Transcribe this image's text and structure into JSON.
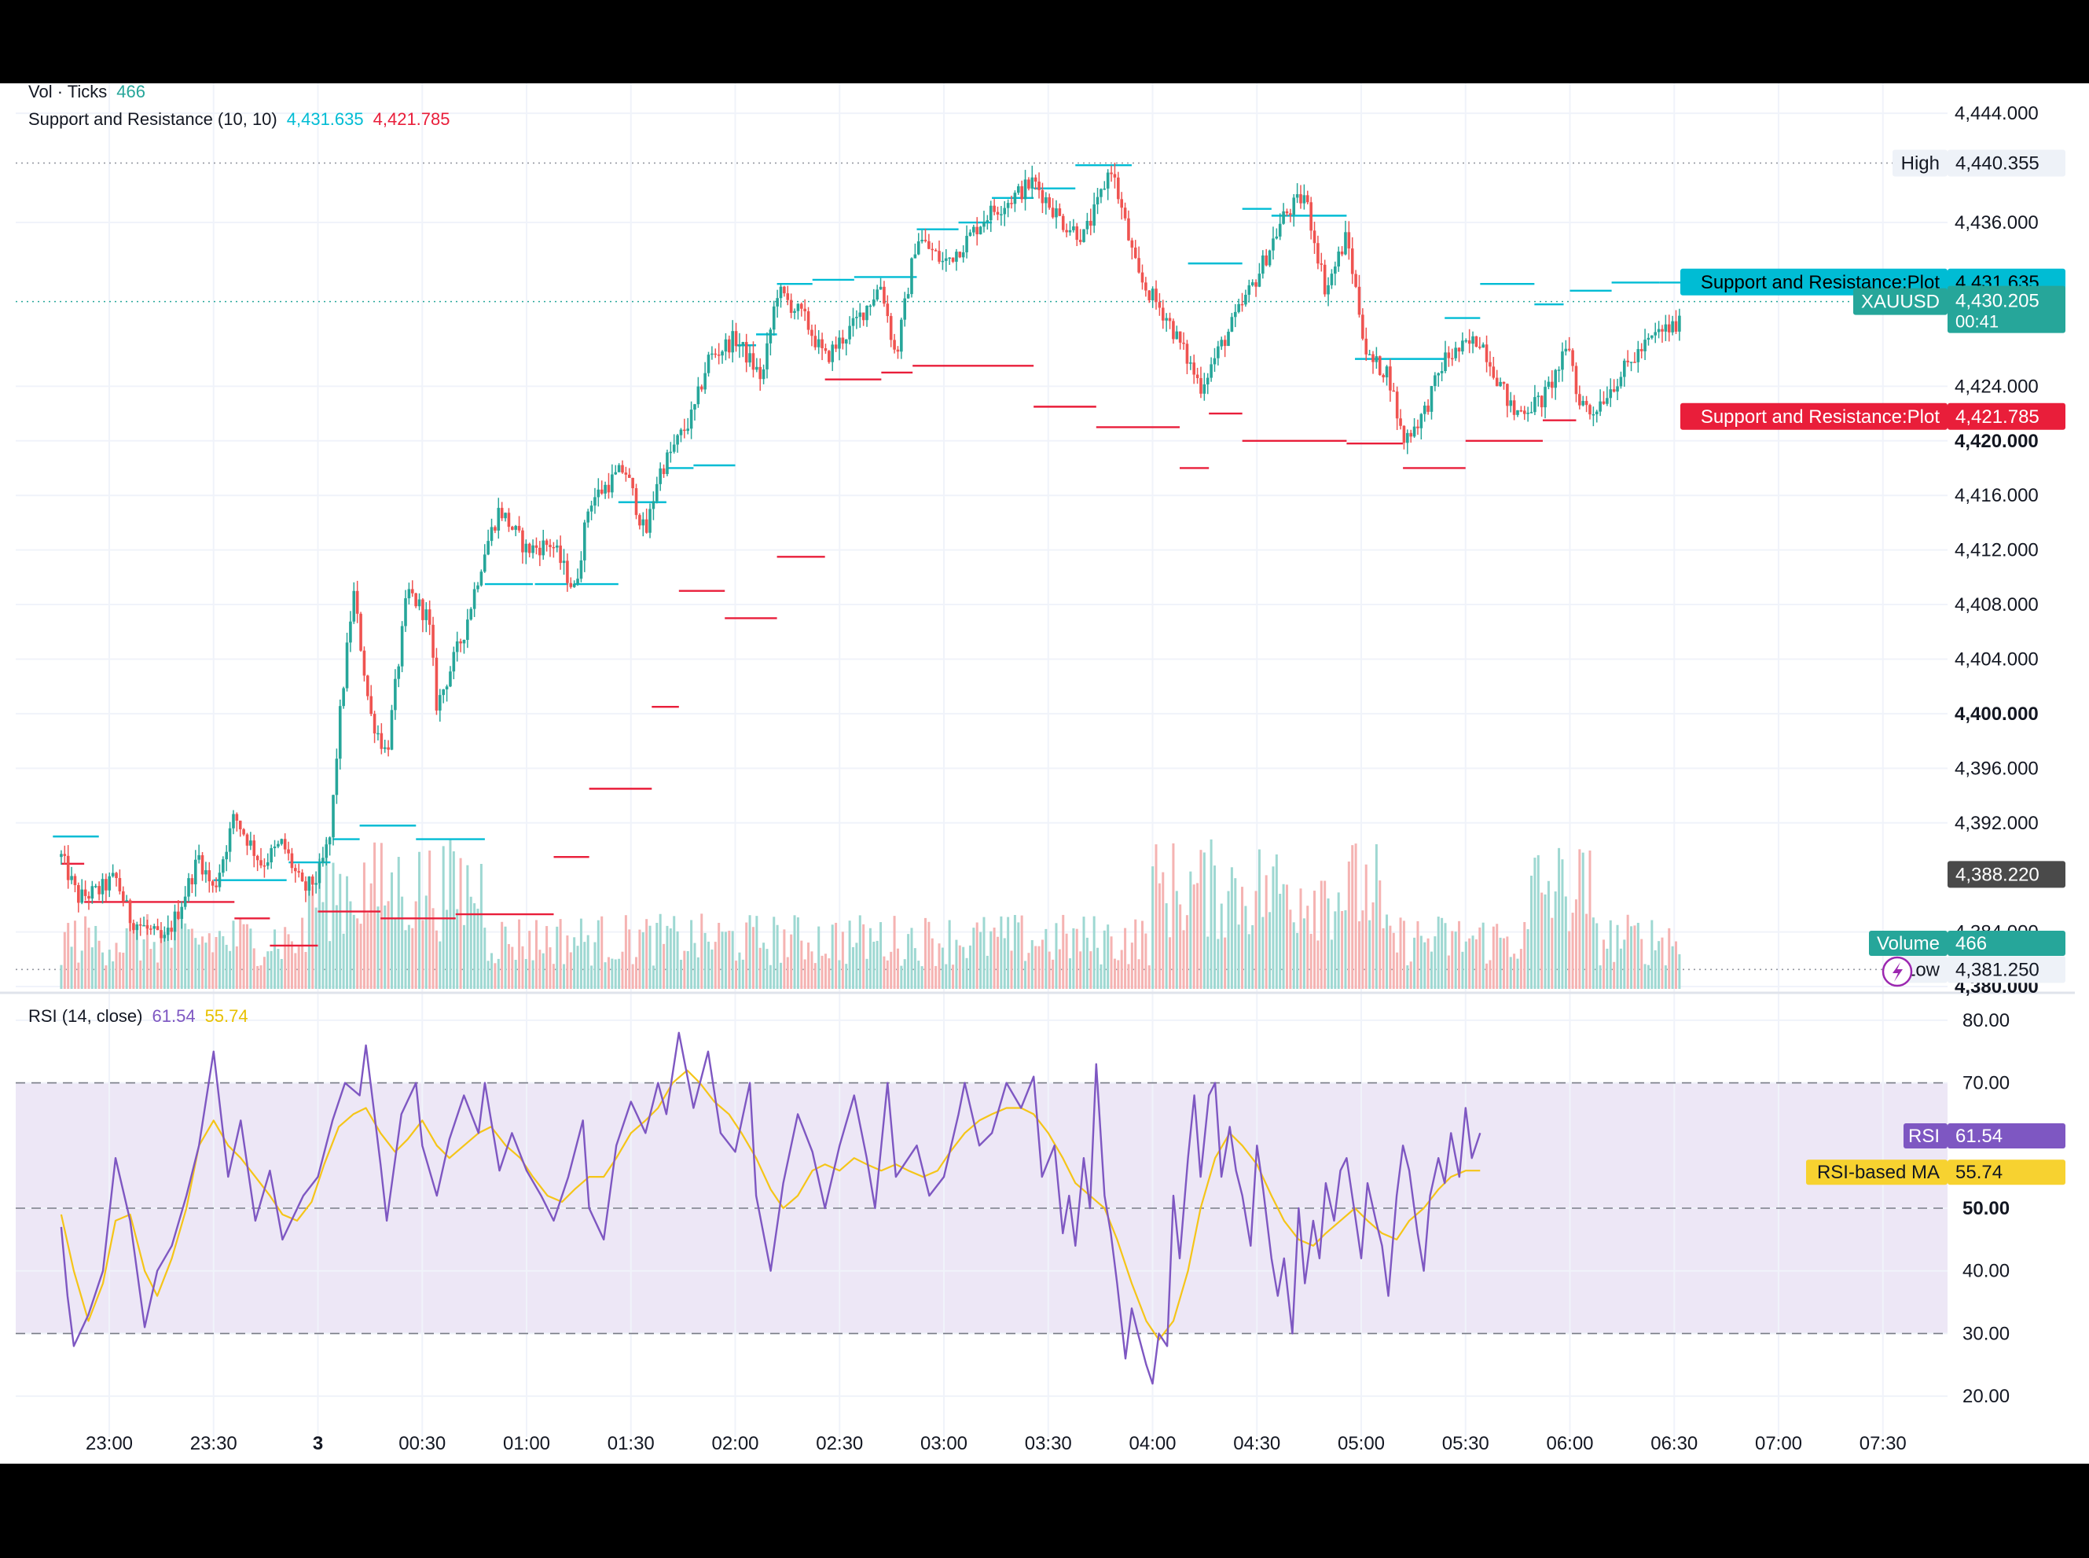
{
  "colors": {
    "up": "#26a69a",
    "down": "#ef5350",
    "resistance": "#00bcd4",
    "support": "#e91e3a",
    "rsi": "#7e57c2",
    "rsi_ma": "#f5c518",
    "rsi_band": "#ede7f6",
    "grid": "#f0f3fa",
    "axis_text": "#131722"
  },
  "legend": {
    "volume": {
      "label": "Vol · Ticks",
      "value": "466"
    },
    "sr": {
      "label": "Support and Resistance (10, 10)",
      "resistance": "4,431.635",
      "support": "4,421.785"
    },
    "rsi": {
      "label": "RSI (14, close)",
      "rsi": "61.54",
      "ma": "55.74"
    }
  },
  "price_labels": {
    "high_label": "High",
    "high_value": "4,440.355",
    "resistance_label": "Support and Resistance:Plot",
    "resistance_value": "4,431.635",
    "symbol": "XAUUSD",
    "last_price": "4,430.205",
    "countdown": "00:41",
    "support_label": "Support and Resistance:Plot",
    "support_value": "4,421.785",
    "crosshair_value": "4,388.220",
    "low_label": "Low",
    "low_value": "4,381.250",
    "volume_label": "Volume",
    "volume_value": "466"
  },
  "rsi_labels": {
    "rsi_label": "RSI",
    "rsi_value": "61.54",
    "ma_label": "RSI-based MA",
    "ma_value": "55.74"
  },
  "chart_data": {
    "type": "candlestick",
    "symbol": "XAUUSD",
    "price_axis": {
      "ticks": [
        "4,444.000",
        "4,436.000",
        "4,424.000",
        "4,420.000",
        "4,416.000",
        "4,412.000",
        "4,408.000",
        "4,404.000",
        "4,400.000",
        "4,396.000",
        "4,392.000",
        "4,384.000",
        "4,380.000"
      ],
      "bold_ticks": [
        "4,420.000",
        "4,400.000",
        "4,380.000"
      ],
      "range": [
        4379.6,
        4446.2
      ]
    },
    "rsi_axis": {
      "ticks": [
        "80.00",
        "70.00",
        "50.00",
        "40.00",
        "30.00",
        "20.00"
      ],
      "bold_ticks": [
        "50.00"
      ],
      "range": [
        16,
        84
      ],
      "band": [
        30,
        70
      ],
      "dashed_levels": [
        70,
        50,
        30
      ]
    },
    "time_axis": {
      "labels": [
        "23:00",
        "23:30",
        "3",
        "00:30",
        "01:00",
        "01:30",
        "02:00",
        "02:30",
        "03:00",
        "03:30",
        "04:00",
        "04:30",
        "05:00",
        "05:30",
        "06:00",
        "06:30",
        "07:00",
        "07:30"
      ],
      "bold_labels": [
        "3"
      ]
    },
    "price_path": [
      [
        -0.23,
        4389.5
      ],
      [
        -0.15,
        4386.5
      ],
      [
        -0.05,
        4387.0
      ],
      [
        0.03,
        4388.0
      ],
      [
        0.1,
        4385.0
      ],
      [
        0.2,
        4384.0
      ],
      [
        0.26,
        4383.2
      ],
      [
        0.33,
        4385.5
      ],
      [
        0.43,
        4389.5
      ],
      [
        0.5,
        4387.0
      ],
      [
        0.6,
        4392.5
      ],
      [
        0.73,
        4389.0
      ],
      [
        0.83,
        4390.5
      ],
      [
        0.93,
        4387.0
      ],
      [
        1.0,
        4388.0
      ],
      [
        1.06,
        4391.0
      ],
      [
        1.1,
        4399.0
      ],
      [
        1.17,
        4409.0
      ],
      [
        1.25,
        4400.0
      ],
      [
        1.33,
        4397.0
      ],
      [
        1.43,
        4409.0
      ],
      [
        1.53,
        4407.0
      ],
      [
        1.57,
        4400.5
      ],
      [
        1.7,
        4406.0
      ],
      [
        1.8,
        4412.0
      ],
      [
        1.87,
        4415.0
      ],
      [
        2.0,
        4412.0
      ],
      [
        2.12,
        4412.5
      ],
      [
        2.23,
        4409.0
      ],
      [
        2.3,
        4415.5
      ],
      [
        2.47,
        4418.0
      ],
      [
        2.57,
        4413.0
      ],
      [
        2.63,
        4417.5
      ],
      [
        2.8,
        4422.0
      ],
      [
        2.87,
        4426.0
      ],
      [
        3.0,
        4427.5
      ],
      [
        3.13,
        4424.5
      ],
      [
        3.2,
        4431.0
      ],
      [
        3.33,
        4429.0
      ],
      [
        3.43,
        4426.0
      ],
      [
        3.57,
        4428.5
      ],
      [
        3.7,
        4431.5
      ],
      [
        3.77,
        4426.0
      ],
      [
        3.87,
        4435.0
      ],
      [
        4.0,
        4433.0
      ],
      [
        4.1,
        4434.5
      ],
      [
        4.2,
        4436.5
      ],
      [
        4.3,
        4437.5
      ],
      [
        4.43,
        4439.0
      ],
      [
        4.57,
        4436.0
      ],
      [
        4.67,
        4435.0
      ],
      [
        4.73,
        4437.0
      ],
      [
        4.8,
        4440.2
      ],
      [
        4.93,
        4432.0
      ],
      [
        5.07,
        4429.0
      ],
      [
        5.23,
        4424.0
      ],
      [
        5.33,
        4427.0
      ],
      [
        5.5,
        4432.0
      ],
      [
        5.63,
        4436.5
      ],
      [
        5.73,
        4438.0
      ],
      [
        5.83,
        4431.0
      ],
      [
        5.93,
        4435.0
      ],
      [
        6.03,
        4426.0
      ],
      [
        6.13,
        4425.0
      ],
      [
        6.2,
        4420.0
      ],
      [
        6.3,
        4422.0
      ],
      [
        6.4,
        4426.0
      ],
      [
        6.57,
        4427.5
      ],
      [
        6.67,
        4424.0
      ],
      [
        6.73,
        4422.0
      ],
      [
        6.87,
        4423.0
      ],
      [
        7.0,
        4427.0
      ],
      [
        7.03,
        4423.5
      ],
      [
        7.1,
        4422.0
      ],
      [
        7.2,
        4424.0
      ],
      [
        7.33,
        4426.5
      ],
      [
        7.43,
        4428.0
      ],
      [
        7.53,
        4428.5
      ]
    ],
    "resistance_segments": [
      [
        -0.27,
        -0.05,
        4391.0
      ],
      [
        0.5,
        0.85,
        4387.8
      ],
      [
        0.86,
        1.06,
        4389.1
      ],
      [
        1.07,
        1.2,
        4390.8
      ],
      [
        1.2,
        1.47,
        4391.8
      ],
      [
        1.47,
        1.8,
        4390.8
      ],
      [
        1.8,
        2.03,
        4409.5
      ],
      [
        2.04,
        2.2,
        4409.5
      ],
      [
        2.23,
        2.44,
        4409.5
      ],
      [
        2.44,
        2.67,
        4415.5
      ],
      [
        2.67,
        2.8,
        4418.0
      ],
      [
        2.8,
        3.0,
        4418.2
      ],
      [
        3.0,
        3.1,
        4427.0
      ],
      [
        3.1,
        3.2,
        4427.8
      ],
      [
        3.2,
        3.37,
        4431.5
      ],
      [
        3.37,
        3.57,
        4431.8
      ],
      [
        3.57,
        3.87,
        4432.0
      ],
      [
        3.87,
        4.07,
        4435.5
      ],
      [
        4.07,
        4.23,
        4436.0
      ],
      [
        4.23,
        4.43,
        4437.8
      ],
      [
        4.43,
        4.63,
        4438.5
      ],
      [
        4.63,
        4.9,
        4440.2
      ],
      [
        5.17,
        5.43,
        4433.0
      ],
      [
        5.43,
        5.57,
        4437.0
      ],
      [
        5.57,
        5.93,
        4436.5
      ],
      [
        5.97,
        6.4,
        4426.0
      ],
      [
        6.4,
        6.57,
        4429.0
      ],
      [
        6.57,
        6.83,
        4431.5
      ],
      [
        6.83,
        6.97,
        4430.0
      ],
      [
        7.0,
        7.2,
        4431.0
      ],
      [
        7.2,
        7.43,
        4431.6
      ],
      [
        7.43,
        7.53,
        4431.6
      ]
    ],
    "support_segments": [
      [
        -0.23,
        -0.12,
        4389.0
      ],
      [
        -0.12,
        0.6,
        4386.2
      ],
      [
        0.6,
        0.77,
        4385.0
      ],
      [
        0.77,
        1.0,
        4383.0
      ],
      [
        1.0,
        1.3,
        4385.5
      ],
      [
        1.3,
        1.66,
        4385.0
      ],
      [
        1.66,
        2.13,
        4385.3
      ],
      [
        2.13,
        2.3,
        4389.5
      ],
      [
        2.3,
        2.6,
        4394.5
      ],
      [
        2.6,
        2.73,
        4400.5
      ],
      [
        2.73,
        2.95,
        4409.0
      ],
      [
        2.95,
        3.2,
        4407.0
      ],
      [
        3.2,
        3.43,
        4411.5
      ],
      [
        3.43,
        3.7,
        4424.5
      ],
      [
        3.7,
        3.85,
        4425.0
      ],
      [
        3.85,
        4.43,
        4425.5
      ],
      [
        4.43,
        4.73,
        4422.5
      ],
      [
        4.73,
        5.13,
        4421.0
      ],
      [
        5.13,
        5.27,
        4418.0
      ],
      [
        5.27,
        5.43,
        4422.0
      ],
      [
        5.43,
        5.93,
        4420.0
      ],
      [
        5.93,
        6.2,
        4419.8
      ],
      [
        6.2,
        6.5,
        4418.0
      ],
      [
        6.5,
        6.87,
        4420.0
      ],
      [
        6.87,
        7.03,
        4421.5
      ]
    ],
    "volume": {
      "max_ticks": 1000,
      "last": 466
    },
    "rsi_path": [
      [
        -0.23,
        47
      ],
      [
        -0.2,
        36
      ],
      [
        -0.17,
        28
      ],
      [
        -0.1,
        33
      ],
      [
        -0.03,
        40
      ],
      [
        0.03,
        58
      ],
      [
        0.1,
        48
      ],
      [
        0.17,
        31
      ],
      [
        0.23,
        40
      ],
      [
        0.3,
        44
      ],
      [
        0.37,
        52
      ],
      [
        0.43,
        60
      ],
      [
        0.5,
        75
      ],
      [
        0.57,
        55
      ],
      [
        0.63,
        64
      ],
      [
        0.7,
        48
      ],
      [
        0.77,
        56
      ],
      [
        0.83,
        45
      ],
      [
        0.93,
        52
      ],
      [
        1.0,
        55
      ],
      [
        1.07,
        64
      ],
      [
        1.13,
        70
      ],
      [
        1.2,
        68
      ],
      [
        1.23,
        76
      ],
      [
        1.3,
        57
      ],
      [
        1.33,
        48
      ],
      [
        1.4,
        65
      ],
      [
        1.47,
        70
      ],
      [
        1.5,
        60
      ],
      [
        1.57,
        52
      ],
      [
        1.63,
        61
      ],
      [
        1.7,
        68
      ],
      [
        1.77,
        62
      ],
      [
        1.8,
        70
      ],
      [
        1.87,
        56
      ],
      [
        1.93,
        62
      ],
      [
        2.0,
        56
      ],
      [
        2.07,
        52
      ],
      [
        2.13,
        48
      ],
      [
        2.2,
        55
      ],
      [
        2.27,
        64
      ],
      [
        2.3,
        50
      ],
      [
        2.37,
        45
      ],
      [
        2.43,
        60
      ],
      [
        2.5,
        67
      ],
      [
        2.57,
        62
      ],
      [
        2.63,
        70
      ],
      [
        2.67,
        65
      ],
      [
        2.73,
        78
      ],
      [
        2.8,
        66
      ],
      [
        2.87,
        75
      ],
      [
        2.93,
        62
      ],
      [
        3.0,
        59
      ],
      [
        3.07,
        70
      ],
      [
        3.1,
        52
      ],
      [
        3.17,
        40
      ],
      [
        3.23,
        54
      ],
      [
        3.3,
        65
      ],
      [
        3.37,
        59
      ],
      [
        3.43,
        50
      ],
      [
        3.5,
        60
      ],
      [
        3.57,
        68
      ],
      [
        3.63,
        58
      ],
      [
        3.67,
        50
      ],
      [
        3.73,
        70
      ],
      [
        3.77,
        55
      ],
      [
        3.87,
        60
      ],
      [
        3.93,
        52
      ],
      [
        4.0,
        55
      ],
      [
        4.07,
        65
      ],
      [
        4.1,
        70
      ],
      [
        4.17,
        60
      ],
      [
        4.23,
        62
      ],
      [
        4.3,
        70
      ],
      [
        4.37,
        66
      ],
      [
        4.43,
        71
      ],
      [
        4.47,
        55
      ],
      [
        4.53,
        60
      ],
      [
        4.57,
        46
      ],
      [
        4.6,
        52
      ],
      [
        4.63,
        44
      ],
      [
        4.67,
        58
      ],
      [
        4.7,
        50
      ],
      [
        4.73,
        73
      ],
      [
        4.77,
        52
      ],
      [
        4.8,
        46
      ],
      [
        4.83,
        38
      ],
      [
        4.87,
        26
      ],
      [
        4.9,
        34
      ],
      [
        4.93,
        30
      ],
      [
        4.97,
        25
      ],
      [
        5.0,
        22
      ],
      [
        5.03,
        30
      ],
      [
        5.07,
        28
      ],
      [
        5.1,
        52
      ],
      [
        5.13,
        42
      ],
      [
        5.17,
        58
      ],
      [
        5.2,
        68
      ],
      [
        5.23,
        55
      ],
      [
        5.27,
        68
      ],
      [
        5.3,
        70
      ],
      [
        5.33,
        55
      ],
      [
        5.37,
        63
      ],
      [
        5.4,
        56
      ],
      [
        5.43,
        52
      ],
      [
        5.47,
        44
      ],
      [
        5.5,
        60
      ],
      [
        5.53,
        53
      ],
      [
        5.57,
        42
      ],
      [
        5.6,
        36
      ],
      [
        5.63,
        42
      ],
      [
        5.67,
        30
      ],
      [
        5.7,
        50
      ],
      [
        5.73,
        38
      ],
      [
        5.77,
        48
      ],
      [
        5.8,
        42
      ],
      [
        5.83,
        54
      ],
      [
        5.87,
        48
      ],
      [
        5.9,
        56
      ],
      [
        5.93,
        58
      ],
      [
        5.97,
        49
      ],
      [
        6.0,
        42
      ],
      [
        6.03,
        54
      ],
      [
        6.07,
        48
      ],
      [
        6.1,
        44
      ],
      [
        6.13,
        36
      ],
      [
        6.17,
        52
      ],
      [
        6.2,
        60
      ],
      [
        6.23,
        56
      ],
      [
        6.27,
        46
      ],
      [
        6.3,
        40
      ],
      [
        6.33,
        52
      ],
      [
        6.37,
        58
      ],
      [
        6.4,
        54
      ],
      [
        6.43,
        62
      ],
      [
        6.47,
        55
      ],
      [
        6.5,
        66
      ],
      [
        6.53,
        58
      ],
      [
        6.57,
        62
      ]
    ],
    "rsi_ma_path": [
      [
        -0.23,
        49
      ],
      [
        -0.17,
        40
      ],
      [
        -0.1,
        32
      ],
      [
        -0.03,
        38
      ],
      [
        0.03,
        48
      ],
      [
        0.1,
        49
      ],
      [
        0.17,
        40
      ],
      [
        0.23,
        36
      ],
      [
        0.3,
        42
      ],
      [
        0.37,
        50
      ],
      [
        0.43,
        60
      ],
      [
        0.5,
        64
      ],
      [
        0.57,
        60
      ],
      [
        0.63,
        58
      ],
      [
        0.7,
        55
      ],
      [
        0.77,
        52
      ],
      [
        0.83,
        49
      ],
      [
        0.9,
        48
      ],
      [
        0.97,
        51
      ],
      [
        1.03,
        57
      ],
      [
        1.1,
        63
      ],
      [
        1.17,
        65
      ],
      [
        1.23,
        66
      ],
      [
        1.3,
        62
      ],
      [
        1.37,
        59
      ],
      [
        1.43,
        61
      ],
      [
        1.5,
        64
      ],
      [
        1.57,
        60
      ],
      [
        1.63,
        58
      ],
      [
        1.7,
        60
      ],
      [
        1.77,
        62
      ],
      [
        1.83,
        63
      ],
      [
        1.9,
        60
      ],
      [
        1.97,
        58
      ],
      [
        2.03,
        55
      ],
      [
        2.1,
        52
      ],
      [
        2.17,
        51
      ],
      [
        2.23,
        53
      ],
      [
        2.3,
        55
      ],
      [
        2.37,
        55
      ],
      [
        2.43,
        58
      ],
      [
        2.5,
        62
      ],
      [
        2.57,
        64
      ],
      [
        2.63,
        66
      ],
      [
        2.7,
        70
      ],
      [
        2.77,
        72
      ],
      [
        2.83,
        70
      ],
      [
        2.9,
        67
      ],
      [
        2.97,
        65
      ],
      [
        3.03,
        62
      ],
      [
        3.1,
        58
      ],
      [
        3.17,
        53
      ],
      [
        3.23,
        50
      ],
      [
        3.3,
        52
      ],
      [
        3.37,
        56
      ],
      [
        3.43,
        57
      ],
      [
        3.5,
        56
      ],
      [
        3.57,
        58
      ],
      [
        3.63,
        57
      ],
      [
        3.7,
        56
      ],
      [
        3.77,
        57
      ],
      [
        3.83,
        56
      ],
      [
        3.9,
        55
      ],
      [
        3.97,
        56
      ],
      [
        4.03,
        59
      ],
      [
        4.1,
        62
      ],
      [
        4.17,
        64
      ],
      [
        4.23,
        65
      ],
      [
        4.3,
        66
      ],
      [
        4.37,
        66
      ],
      [
        4.43,
        65
      ],
      [
        4.5,
        62
      ],
      [
        4.57,
        58
      ],
      [
        4.63,
        54
      ],
      [
        4.7,
        52
      ],
      [
        4.77,
        50
      ],
      [
        4.83,
        45
      ],
      [
        4.9,
        38
      ],
      [
        4.97,
        32
      ],
      [
        5.03,
        29
      ],
      [
        5.1,
        32
      ],
      [
        5.17,
        40
      ],
      [
        5.23,
        50
      ],
      [
        5.3,
        58
      ],
      [
        5.37,
        62
      ],
      [
        5.43,
        60
      ],
      [
        5.5,
        57
      ],
      [
        5.57,
        52
      ],
      [
        5.63,
        48
      ],
      [
        5.7,
        45
      ],
      [
        5.77,
        44
      ],
      [
        5.83,
        46
      ],
      [
        5.9,
        48
      ],
      [
        5.97,
        50
      ],
      [
        6.03,
        48
      ],
      [
        6.1,
        46
      ],
      [
        6.17,
        45
      ],
      [
        6.23,
        48
      ],
      [
        6.3,
        50
      ],
      [
        6.37,
        53
      ],
      [
        6.43,
        55
      ],
      [
        6.5,
        56
      ],
      [
        6.57,
        56
      ]
    ]
  }
}
